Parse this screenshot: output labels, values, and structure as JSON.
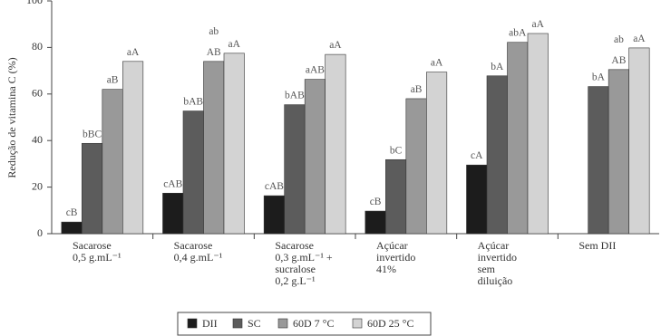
{
  "chart_data": {
    "type": "bar",
    "y_label": "Redução de vitamina C (%)",
    "categories": [
      "Sacarose\n0,5 g.mL⁻¹",
      "Sacarose\n0,4 g.mL⁻¹",
      "Sacarose\n0,3 g.mL⁻¹ +\nsucralose\n0,2 g.L⁻¹",
      "Açúcar\ninvertido\n41%",
      "Açúcar\ninvertido\nsem\ndiluição",
      "Sem DII"
    ],
    "series": [
      {
        "name": "DII",
        "color": "#1c1c1c",
        "values": [
          5,
          17.4,
          16.3,
          9.7,
          29.5,
          null
        ],
        "letters": [
          "cB",
          "cAB",
          "cAB",
          "cB",
          "cA",
          null
        ]
      },
      {
        "name": "SC",
        "color": "#5c5c5c",
        "values": [
          38.8,
          52.7,
          55.4,
          31.8,
          67.8,
          63.2
        ],
        "letters": [
          "bBC",
          "bAB",
          "bAB",
          "bC",
          "bA",
          "bA"
        ]
      },
      {
        "name": "60D 7 °C",
        "color": "#999999",
        "values": [
          62,
          74,
          66.3,
          58,
          82.2,
          70.5
        ],
        "letters": [
          "aB",
          "ab\nAB",
          "aAB",
          "aB",
          "abA",
          "ab\nAB"
        ]
      },
      {
        "name": "60D 25 °C",
        "color": "#d3d3d3",
        "values": [
          74,
          77.5,
          77,
          69.4,
          86,
          79.8
        ],
        "letters": [
          "aA",
          "aA",
          "aA",
          "aA",
          "aA",
          "aA"
        ]
      }
    ],
    "ylim": [
      0,
      100
    ],
    "yticks": [
      0,
      20,
      40,
      60,
      80,
      100
    ]
  }
}
